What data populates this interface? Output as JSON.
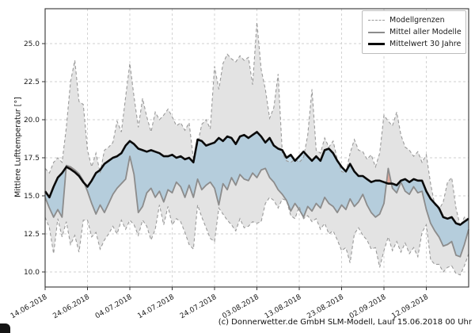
{
  "caption": "(c) Donnerwetter.de GmbH SLM-Modell, Lauf 15.06.2018 00 Uhr",
  "legend": {
    "items": [
      {
        "label": "Modellgrenzen",
        "style": "dashed-gray"
      },
      {
        "label": "Mittel aller Modelle",
        "style": "solid-gray"
      },
      {
        "label": "Mittelwert 30 Jahre",
        "style": "solid-black"
      }
    ]
  },
  "colors": {
    "envelope_fill": "#e3e3e3",
    "envelope_edge": "#9a9a9a",
    "model_mean_line": "#8c8c8c",
    "mean30_line": "#0a0a0a",
    "below_band": "#74add1",
    "above_band": "#e06a50",
    "grid": "#cfcfcf",
    "spine": "#333333"
  },
  "chart_data": {
    "type": "line",
    "title": "",
    "xlabel": "",
    "ylabel": "Mittlere Lufttemperatur [°]",
    "x_unit": "days since 14.06.2018 (daily values)",
    "xlim": [
      0,
      100
    ],
    "ylim": [
      9.0,
      27.3
    ],
    "grid": true,
    "legend_position": "upper right",
    "x_tick_days": [
      0,
      10,
      20,
      30,
      40,
      50,
      60,
      70,
      80,
      90
    ],
    "x_tick_labels": [
      "14.06.2018",
      "24.06.2018",
      "04.07.2018",
      "14.07.2018",
      "24.07.2018",
      "03.08.2018",
      "13.08.2018",
      "23.08.2018",
      "02.09.2018",
      "12.09.2018"
    ],
    "y_ticks": [
      25.0,
      22.5,
      20.0,
      17.5,
      15.0,
      12.5,
      10.0
    ],
    "series": [
      {
        "name": "Modellgrenzen (oben)",
        "role": "envelope_upper",
        "values": [
          16.8,
          16.5,
          17.2,
          17.5,
          17.2,
          19.5,
          22.5,
          23.9,
          21.2,
          21.0,
          18.0,
          16.9,
          17.8,
          16.5,
          18.0,
          18.2,
          18.5,
          19.9,
          19.2,
          21.5,
          23.7,
          21.5,
          19.5,
          21.4,
          20.2,
          19.2,
          20.5,
          20.0,
          20.3,
          20.7,
          20.2,
          19.6,
          19.8,
          19.3,
          19.8,
          17.4,
          18.4,
          19.7,
          20.0,
          19.4,
          23.5,
          22.0,
          23.7,
          24.3,
          24.0,
          23.8,
          24.2,
          23.9,
          24.1,
          22.3,
          26.4,
          23.3,
          22.0,
          20.1,
          20.8,
          23.0,
          17.8,
          17.3,
          17.2,
          17.4,
          17.2,
          17.5,
          19.0,
          22.0,
          18.0,
          17.8,
          18.8,
          18.2,
          18.6,
          17.4,
          16.6,
          16.5,
          17.8,
          18.7,
          18.0,
          17.9,
          17.4,
          17.7,
          16.9,
          17.8,
          20.3,
          19.9,
          19.6,
          20.5,
          19.0,
          18.2,
          18.0,
          17.6,
          17.9,
          17.2,
          17.7,
          15.8,
          14.4,
          14.1,
          14.6,
          15.9,
          16.2,
          14.2,
          13.0,
          13.6,
          13.5
        ]
      },
      {
        "name": "Modellgrenzen (unten)",
        "role": "envelope_lower",
        "values": [
          13.6,
          12.9,
          11.2,
          13.5,
          12.3,
          13.3,
          11.8,
          12.4,
          11.3,
          13.4,
          13.4,
          12.3,
          12.6,
          11.5,
          12.1,
          12.5,
          13.0,
          12.5,
          13.4,
          12.8,
          13.4,
          13.1,
          12.4,
          13.4,
          13.0,
          12.1,
          12.8,
          14.4,
          13.1,
          14.3,
          13.1,
          13.5,
          13.3,
          12.6,
          11.8,
          11.5,
          14.4,
          13.6,
          12.9,
          12.2,
          12.0,
          14.2,
          13.8,
          13.4,
          13.1,
          12.7,
          13.5,
          12.9,
          13.0,
          13.3,
          13.2,
          13.3,
          14.5,
          14.9,
          14.7,
          14.2,
          14.8,
          14.7,
          13.7,
          13.5,
          14.3,
          13.5,
          13.7,
          13.3,
          13.5,
          12.8,
          13.2,
          12.5,
          12.7,
          12.1,
          11.4,
          11.6,
          10.6,
          12.5,
          12.9,
          12.4,
          12.1,
          11.5,
          11.6,
          10.3,
          11.4,
          12.3,
          11.4,
          12.0,
          11.3,
          11.9,
          11.2,
          11.6,
          11.0,
          12.6,
          13.1,
          10.8,
          10.5,
          10.5,
          10.0,
          10.3,
          10.4,
          9.9,
          9.8,
          10.4,
          11.2
        ]
      },
      {
        "name": "Mittel aller Modelle",
        "role": "model_mean",
        "values": [
          14.9,
          14.2,
          13.6,
          14.1,
          13.6,
          17.0,
          16.9,
          16.7,
          16.45,
          16.0,
          15.3,
          14.5,
          13.8,
          14.4,
          13.9,
          14.5,
          15.1,
          15.5,
          15.8,
          16.1,
          17.6,
          16.4,
          13.9,
          14.3,
          15.2,
          15.5,
          14.9,
          15.3,
          14.6,
          15.4,
          15.2,
          15.9,
          15.6,
          14.9,
          15.7,
          14.9,
          16.1,
          15.4,
          15.7,
          15.9,
          15.5,
          14.4,
          15.8,
          15.4,
          16.2,
          15.7,
          16.4,
          16.1,
          16.0,
          16.5,
          16.2,
          16.7,
          16.8,
          16.2,
          15.9,
          15.4,
          15.1,
          14.7,
          14.0,
          14.5,
          14.1,
          13.6,
          14.3,
          14.0,
          14.5,
          14.2,
          14.9,
          14.5,
          14.3,
          13.9,
          14.4,
          14.1,
          14.8,
          14.3,
          14.6,
          15.1,
          14.4,
          13.9,
          13.6,
          13.8,
          14.5,
          16.8,
          15.5,
          15.2,
          15.9,
          15.3,
          15.1,
          15.6,
          15.2,
          15.3,
          14.1,
          13.2,
          12.7,
          12.3,
          11.7,
          11.8,
          12.0,
          11.1,
          11.0,
          11.8,
          12.8
        ]
      },
      {
        "name": "Mittelwert 30 Jahre",
        "role": "mean_30y",
        "values": [
          15.3,
          14.9,
          15.6,
          16.2,
          16.5,
          16.9,
          16.75,
          16.55,
          16.3,
          15.9,
          15.6,
          16.0,
          16.5,
          16.7,
          17.1,
          17.3,
          17.5,
          17.6,
          17.8,
          18.3,
          18.6,
          18.4,
          18.1,
          18.0,
          17.9,
          18.0,
          17.9,
          17.8,
          17.6,
          17.6,
          17.7,
          17.5,
          17.6,
          17.4,
          17.5,
          17.2,
          18.7,
          18.6,
          18.3,
          18.4,
          18.5,
          18.8,
          18.6,
          18.9,
          18.8,
          18.4,
          18.9,
          19.0,
          18.8,
          19.0,
          19.2,
          18.9,
          18.5,
          18.8,
          18.3,
          18.1,
          18.0,
          17.5,
          17.7,
          17.3,
          17.6,
          17.9,
          17.6,
          17.3,
          17.6,
          17.3,
          18.0,
          18.1,
          17.8,
          17.3,
          16.9,
          16.6,
          17.1,
          16.6,
          16.3,
          16.3,
          16.1,
          15.9,
          16.0,
          16.0,
          15.9,
          15.8,
          15.8,
          15.7,
          16.0,
          16.1,
          15.9,
          16.1,
          16.0,
          16.0,
          15.3,
          14.8,
          14.5,
          14.2,
          13.6,
          13.5,
          13.6,
          13.2,
          13.1,
          13.3,
          13.5
        ]
      }
    ]
  }
}
